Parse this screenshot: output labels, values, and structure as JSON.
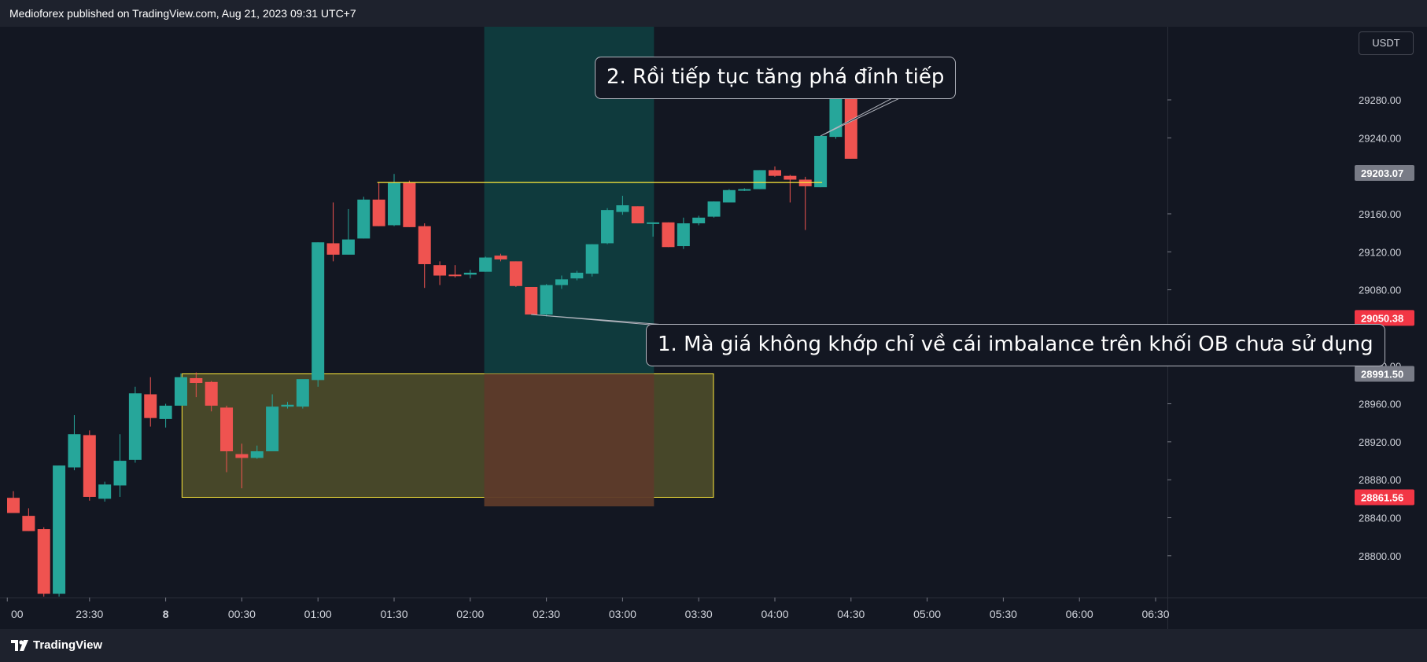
{
  "header": {
    "publisher_text": "Medioforex published on TradingView.com, Aug 21, 2023 09:31 UTC+7"
  },
  "footer": {
    "brand": "TradingView",
    "logo_icon": "tradingview-logo-icon"
  },
  "price_axis": {
    "currency": "USDT"
  },
  "colors": {
    "up": "#26a69a",
    "down": "#ef5350",
    "background": "#131722",
    "zone_yellow": "#ffeb3b",
    "zone_teal": "#0f3a3d",
    "zone_red": "#5d3a2a"
  },
  "annotations": {
    "callout_1": "1. Mà giá không khớp chỉ về cái imbalance trên khối OB chưa sử dụng",
    "callout_2": "2. Rồi tiếp tục tăng phá đỉnh tiếp"
  },
  "chart_data": {
    "type": "candlestick",
    "title": "",
    "x_tick_labels": [
      {
        "label": "00",
        "bar": -0.4
      },
      {
        "label": "23:30",
        "bar": 5
      },
      {
        "label": "8",
        "bar": 10,
        "bold": true
      },
      {
        "label": "00:30",
        "bar": 15
      },
      {
        "label": "01:00",
        "bar": 20
      },
      {
        "label": "01:30",
        "bar": 25
      },
      {
        "label": "02:00",
        "bar": 30
      },
      {
        "label": "02:30",
        "bar": 35
      },
      {
        "label": "03:00",
        "bar": 40
      },
      {
        "label": "03:30",
        "bar": 45
      },
      {
        "label": "04:00",
        "bar": 50
      },
      {
        "label": "04:30",
        "bar": 55
      },
      {
        "label": "05:00",
        "bar": 60
      },
      {
        "label": "05:30",
        "bar": 65
      },
      {
        "label": "06:00",
        "bar": 70
      },
      {
        "label": "06:30",
        "bar": 75
      }
    ],
    "y_ticks": [
      "29280.00",
      "29240.00",
      "29160.00",
      "29120.00",
      "29080.00",
      "29000.00",
      "28960.00",
      "28920.00",
      "28880.00",
      "28840.00",
      "28800.00"
    ],
    "ylim": [
      28756,
      29357
    ],
    "price_labels": [
      {
        "value": "29203.07",
        "price": 29203.07,
        "color": "#787b86"
      },
      {
        "value": "29050.38",
        "price": 29050.38,
        "color": "#f23645"
      },
      {
        "value": "28991.50",
        "price": 28991.5,
        "color": "#787b86"
      },
      {
        "value": "28861.56",
        "price": 28861.56,
        "color": "#f23645"
      }
    ],
    "candles": [
      {
        "o": 28861,
        "h": 28868,
        "l": 28845,
        "c": 28845
      },
      {
        "o": 28842,
        "h": 28850,
        "l": 28826,
        "c": 28826
      },
      {
        "o": 28828,
        "h": 28830,
        "l": 28757,
        "c": 28760
      },
      {
        "o": 28760,
        "h": 28895,
        "l": 28757,
        "c": 28895
      },
      {
        "o": 28893,
        "h": 28948,
        "l": 28890,
        "c": 28928
      },
      {
        "o": 28927,
        "h": 28932,
        "l": 28858,
        "c": 28862
      },
      {
        "o": 28860,
        "h": 28878,
        "l": 28857,
        "c": 28875
      },
      {
        "o": 28874,
        "h": 28928,
        "l": 28862,
        "c": 28900
      },
      {
        "o": 28901,
        "h": 28978,
        "l": 28898,
        "c": 28971
      },
      {
        "o": 28970,
        "h": 28988,
        "l": 28936,
        "c": 28945
      },
      {
        "o": 28944,
        "h": 28960,
        "l": 28935,
        "c": 28958
      },
      {
        "o": 28958,
        "h": 28992,
        "l": 28958,
        "c": 28988
      },
      {
        "o": 28987,
        "h": 28993,
        "l": 28967,
        "c": 28982
      },
      {
        "o": 28983,
        "h": 28984,
        "l": 28952,
        "c": 28958
      },
      {
        "o": 28956,
        "h": 28958,
        "l": 28888,
        "c": 28910
      },
      {
        "o": 28907,
        "h": 28918,
        "l": 28871,
        "c": 28903
      },
      {
        "o": 28903,
        "h": 28916,
        "l": 28902,
        "c": 28910
      },
      {
        "o": 28910,
        "h": 28970,
        "l": 28910,
        "c": 28957
      },
      {
        "o": 28957,
        "h": 28962,
        "l": 28955,
        "c": 28959
      },
      {
        "o": 28957,
        "h": 28985,
        "l": 28955,
        "c": 28986
      },
      {
        "o": 28985,
        "h": 29130,
        "l": 28978,
        "c": 29130
      },
      {
        "o": 29129,
        "h": 29172,
        "l": 29110,
        "c": 29117
      },
      {
        "o": 29117,
        "h": 29165,
        "l": 29117,
        "c": 29133
      },
      {
        "o": 29134,
        "h": 29178,
        "l": 29134,
        "c": 29175
      },
      {
        "o": 29175,
        "h": 29193,
        "l": 29147,
        "c": 29147
      },
      {
        "o": 29148,
        "h": 29202,
        "l": 29147,
        "c": 29193
      },
      {
        "o": 29193,
        "h": 29195,
        "l": 29146,
        "c": 29146
      },
      {
        "o": 29147,
        "h": 29150,
        "l": 29082,
        "c": 29107
      },
      {
        "o": 29106,
        "h": 29110,
        "l": 29085,
        "c": 29095
      },
      {
        "o": 29096,
        "h": 29106,
        "l": 29093,
        "c": 29095
      },
      {
        "o": 29096,
        "h": 29101,
        "l": 29092,
        "c": 29098
      },
      {
        "o": 29099,
        "h": 29115,
        "l": 29099,
        "c": 29114
      },
      {
        "o": 29116,
        "h": 29118,
        "l": 29110,
        "c": 29112
      },
      {
        "o": 29110,
        "h": 29110,
        "l": 29083,
        "c": 29084
      },
      {
        "o": 29083,
        "h": 29083,
        "l": 29054,
        "c": 29054
      },
      {
        "o": 29054,
        "h": 29086,
        "l": 29052,
        "c": 29085
      },
      {
        "o": 29085,
        "h": 29095,
        "l": 29081,
        "c": 29091
      },
      {
        "o": 29092,
        "h": 29100,
        "l": 29090,
        "c": 29098
      },
      {
        "o": 29097,
        "h": 29128,
        "l": 29094,
        "c": 29128
      },
      {
        "o": 29129,
        "h": 29166,
        "l": 29128,
        "c": 29164
      },
      {
        "o": 29162,
        "h": 29179,
        "l": 29159,
        "c": 29169
      },
      {
        "o": 29168,
        "h": 29168,
        "l": 29150,
        "c": 29150
      },
      {
        "o": 29150,
        "h": 29151,
        "l": 29136,
        "c": 29151
      },
      {
        "o": 29151,
        "h": 29151,
        "l": 29125,
        "c": 29125
      },
      {
        "o": 29126,
        "h": 29156,
        "l": 29123,
        "c": 29150
      },
      {
        "o": 29150,
        "h": 29158,
        "l": 29148,
        "c": 29156
      },
      {
        "o": 29157,
        "h": 29173,
        "l": 29156,
        "c": 29173
      },
      {
        "o": 29172,
        "h": 29186,
        "l": 29172,
        "c": 29185
      },
      {
        "o": 29185,
        "h": 29187,
        "l": 29184,
        "c": 29186
      },
      {
        "o": 29186,
        "h": 29206,
        "l": 29186,
        "c": 29206
      },
      {
        "o": 29206,
        "h": 29210,
        "l": 29199,
        "c": 29200
      },
      {
        "o": 29200,
        "h": 29201,
        "l": 29172,
        "c": 29196
      },
      {
        "o": 29196,
        "h": 29199,
        "l": 29143,
        "c": 29189
      },
      {
        "o": 29188,
        "h": 29242,
        "l": 29188,
        "c": 29242
      },
      {
        "o": 29241,
        "h": 29282,
        "l": 29239,
        "c": 29282
      },
      {
        "o": 29282,
        "h": 29282,
        "l": 29218,
        "c": 29218
      }
    ],
    "resistance_line": {
      "price": 29193,
      "from_bar": 24,
      "to_bar": 53
    },
    "order_block_zone": {
      "price_top": 28991.5,
      "price_bottom": 28861.56,
      "from_bar": 11,
      "to_bar": 46
    },
    "imbalance_zone": {
      "from_bar": 31,
      "to_bar": 42,
      "price_bottom": 28852
    }
  }
}
